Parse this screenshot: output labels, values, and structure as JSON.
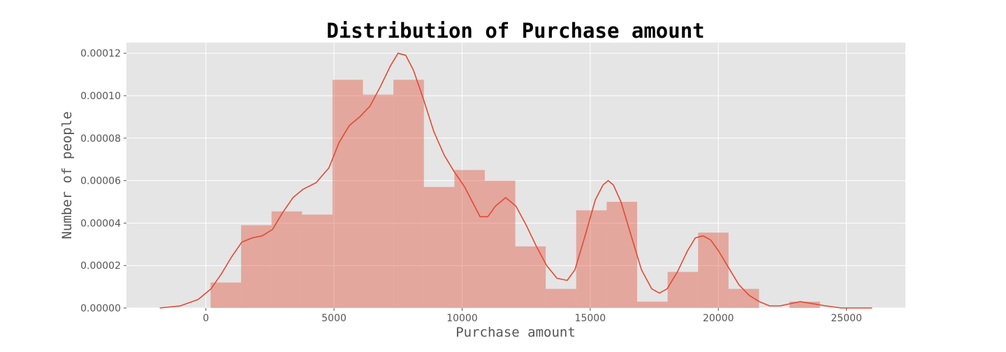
{
  "chart_data": {
    "type": "bar",
    "title": "Distribution of Purchase amount",
    "xlabel": "Purchase amount",
    "ylabel": "Number of people",
    "xlim": [
      -3100,
      27300
    ],
    "ylim": [
      0,
      0.000125
    ],
    "x_ticks": [
      0,
      5000,
      10000,
      15000,
      20000,
      25000
    ],
    "y_ticks": [
      0,
      2e-05,
      4e-05,
      6e-05,
      8e-05,
      0.0001,
      0.00012
    ],
    "y_tick_labels": [
      "0.00000",
      "0.00002",
      "0.00004",
      "0.00006",
      "0.00008",
      "0.00010",
      "0.00012"
    ],
    "grid": true,
    "bar_color": "#E24A33",
    "bar_opacity": 0.4,
    "line_color": "#E24A33",
    "background_color": "#E5E5E5",
    "grid_color": "#FFFFFF",
    "histogram": {
      "bin_edges": [
        185,
        1374,
        2563,
        3752,
        4941,
        6130,
        7319,
        8508,
        9697,
        10886,
        12075,
        13264,
        14453,
        15642,
        16831,
        18020,
        19209,
        20398,
        21587,
        22776,
        23965
      ],
      "densities": [
        1.2e-05,
        3.9e-05,
        4.55e-05,
        4.4e-05,
        0.0001075,
        0.0001005,
        0.0001075,
        5.7e-05,
        6.5e-05,
        6e-05,
        2.9e-05,
        9e-06,
        4.6e-05,
        5e-05,
        3e-06,
        1.7e-05,
        3.55e-05,
        9e-06,
        0,
        3e-06
      ]
    },
    "kde": {
      "x": [
        -1800,
        -1000,
        -300,
        200,
        600,
        1000,
        1400,
        1800,
        2200,
        2600,
        3000,
        3400,
        3800,
        4300,
        4800,
        5200,
        5600,
        6000,
        6400,
        6800,
        7200,
        7500,
        7800,
        8100,
        8500,
        8900,
        9300,
        9700,
        10100,
        10400,
        10700,
        11000,
        11300,
        11700,
        12100,
        12500,
        12900,
        13300,
        13700,
        14100,
        14400,
        14800,
        15200,
        15500,
        15700,
        15900,
        16200,
        16600,
        17000,
        17400,
        17700,
        18000,
        18400,
        18800,
        19100,
        19400,
        19700,
        20000,
        20400,
        20800,
        21200,
        21600,
        22000,
        22400,
        22800,
        23200,
        23700,
        24200,
        24800,
        25500,
        26000
      ],
      "y": [
        0,
        1e-06,
        4e-06,
        9e-06,
        1.6e-05,
        2.4e-05,
        3.1e-05,
        3.3e-05,
        3.4e-05,
        3.7e-05,
        4.5e-05,
        5.2e-05,
        5.6e-05,
        5.9e-05,
        6.6e-05,
        7.8e-05,
        8.6e-05,
        9e-05,
        9.5e-05,
        0.000104,
        0.000114,
        0.00012,
        0.000119,
        0.000112,
        9.8e-05,
        8.3e-05,
        7.2e-05,
        6.4e-05,
        5.7e-05,
        5e-05,
        4.3e-05,
        4.3e-05,
        4.8e-05,
        5.2e-05,
        4.8e-05,
        3.9e-05,
        2.9e-05,
        2e-05,
        1.4e-05,
        1.3e-05,
        1.8e-05,
        3.4e-05,
        5.1e-05,
        5.8e-05,
        6e-05,
        5.8e-05,
        5e-05,
        3.4e-05,
        1.8e-05,
        9e-06,
        7e-06,
        9e-06,
        1.7e-05,
        2.7e-05,
        3.3e-05,
        3.4e-05,
        3.2e-05,
        2.7e-05,
        1.9e-05,
        1.1e-05,
        6e-06,
        3e-06,
        1e-06,
        1e-06,
        2e-06,
        3e-06,
        2e-06,
        1e-06,
        0,
        0,
        0
      ]
    }
  }
}
